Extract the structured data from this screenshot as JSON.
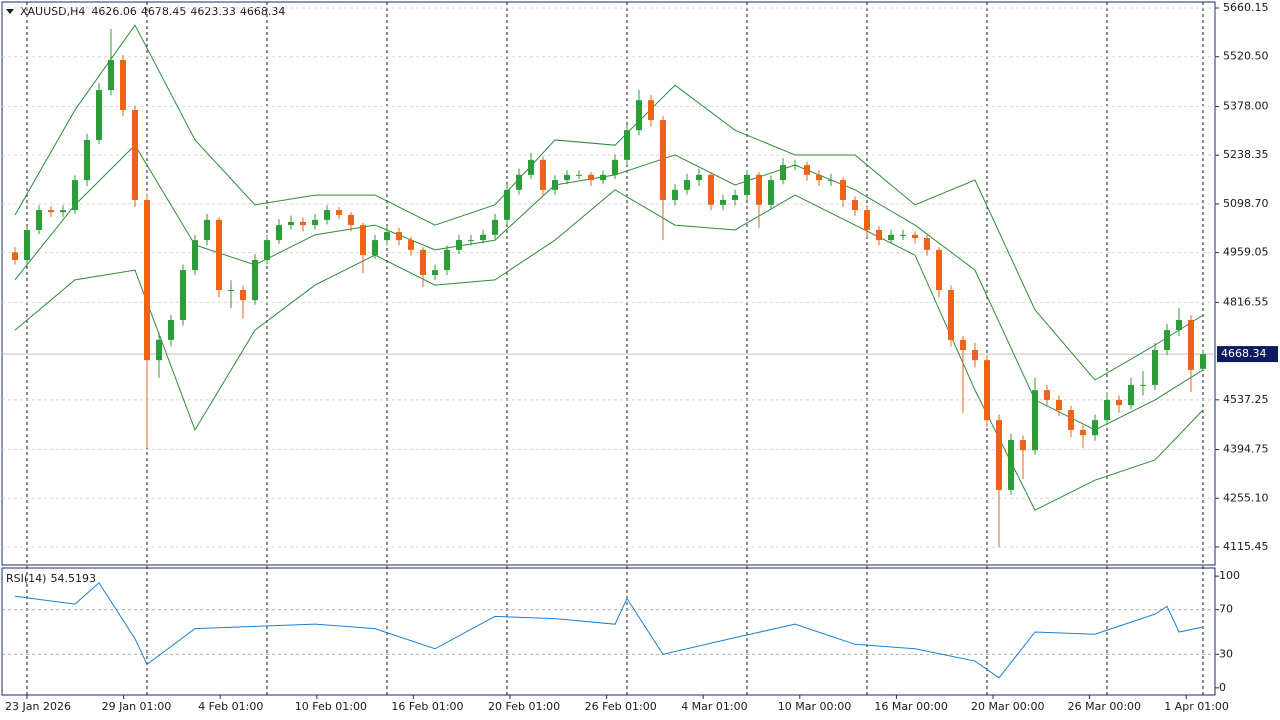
{
  "chart_data": {
    "type": "candlestick",
    "symbol": "XAUUSD,H4",
    "up_color": "#2e9c3a",
    "down_color": "#e8661a",
    "candles": [
      [
        4960,
        4975,
        4925,
        4938
      ],
      [
        4938,
        5035,
        4925,
        5024
      ],
      [
        5024,
        5095,
        5012,
        5081
      ],
      [
        5081,
        5092,
        5062,
        5075
      ],
      [
        5075,
        5095,
        5060,
        5081
      ],
      [
        5081,
        5180,
        5070,
        5167
      ],
      [
        5167,
        5300,
        5150,
        5282
      ],
      [
        5282,
        5445,
        5270,
        5425
      ],
      [
        5425,
        5600,
        5410,
        5511
      ],
      [
        5511,
        5525,
        5350,
        5368
      ],
      [
        5368,
        5380,
        5090,
        5110
      ],
      [
        5110,
        5125,
        4400,
        4651
      ],
      [
        4651,
        4730,
        4600,
        4709
      ],
      [
        4709,
        4780,
        4690,
        4766
      ],
      [
        4766,
        4925,
        4750,
        4909
      ],
      [
        4909,
        5010,
        4895,
        4995
      ],
      [
        4995,
        5070,
        4980,
        5053
      ],
      [
        5053,
        5060,
        4830,
        4852
      ],
      [
        4852,
        4880,
        4800,
        4852
      ],
      [
        4852,
        4865,
        4770,
        4823
      ],
      [
        4823,
        4955,
        4810,
        4938
      ],
      [
        4938,
        5010,
        4925,
        4995
      ],
      [
        4995,
        5055,
        4985,
        5038
      ],
      [
        5038,
        5065,
        5025,
        5047
      ],
      [
        5047,
        5060,
        5020,
        5038
      ],
      [
        5038,
        5070,
        5025,
        5053
      ],
      [
        5053,
        5095,
        5040,
        5081
      ],
      [
        5081,
        5090,
        5055,
        5067
      ],
      [
        5067,
        5075,
        5020,
        5038
      ],
      [
        5038,
        5045,
        4900,
        4952
      ],
      [
        4952,
        5010,
        4940,
        4995
      ],
      [
        4995,
        5035,
        4980,
        5018
      ],
      [
        5018,
        5030,
        4980,
        4995
      ],
      [
        4995,
        5005,
        4950,
        4967
      ],
      [
        4967,
        4975,
        4860,
        4895
      ],
      [
        4895,
        4925,
        4880,
        4909
      ],
      [
        4909,
        4980,
        4895,
        4967
      ],
      [
        4967,
        5010,
        4955,
        4995
      ],
      [
        4995,
        5010,
        4980,
        4995
      ],
      [
        4995,
        5025,
        4985,
        5010
      ],
      [
        5010,
        5070,
        4998,
        5053
      ],
      [
        5053,
        5155,
        5040,
        5139
      ],
      [
        5139,
        5200,
        5125,
        5182
      ],
      [
        5182,
        5245,
        5170,
        5225
      ],
      [
        5225,
        5235,
        5120,
        5139
      ],
      [
        5139,
        5180,
        5125,
        5167
      ],
      [
        5167,
        5195,
        5155,
        5182
      ],
      [
        5182,
        5195,
        5170,
        5182
      ],
      [
        5182,
        5190,
        5150,
        5167
      ],
      [
        5167,
        5195,
        5155,
        5182
      ],
      [
        5182,
        5240,
        5170,
        5225
      ],
      [
        5225,
        5325,
        5210,
        5310
      ],
      [
        5310,
        5425,
        5295,
        5396
      ],
      [
        5396,
        5410,
        5320,
        5339
      ],
      [
        5339,
        5350,
        4995,
        5110
      ],
      [
        5110,
        5155,
        5095,
        5139
      ],
      [
        5139,
        5185,
        5125,
        5167
      ],
      [
        5167,
        5200,
        5150,
        5182
      ],
      [
        5182,
        5190,
        5080,
        5096
      ],
      [
        5096,
        5125,
        5080,
        5110
      ],
      [
        5110,
        5140,
        5095,
        5124
      ],
      [
        5124,
        5195,
        5110,
        5182
      ],
      [
        5182,
        5190,
        5030,
        5096
      ],
      [
        5096,
        5180,
        5085,
        5167
      ],
      [
        5167,
        5230,
        5155,
        5210
      ],
      [
        5210,
        5225,
        5195,
        5210
      ],
      [
        5210,
        5220,
        5165,
        5182
      ],
      [
        5182,
        5195,
        5150,
        5167
      ],
      [
        5167,
        5185,
        5150,
        5167
      ],
      [
        5167,
        5175,
        5090,
        5110
      ],
      [
        5110,
        5120,
        5065,
        5081
      ],
      [
        5081,
        5090,
        5005,
        5024
      ],
      [
        5024,
        5035,
        4980,
        4995
      ],
      [
        4995,
        5025,
        4985,
        5010
      ],
      [
        5010,
        5025,
        4995,
        5010
      ],
      [
        5010,
        5020,
        4985,
        5001
      ],
      [
        5001,
        5010,
        4950,
        4967
      ],
      [
        4967,
        4975,
        4830,
        4852
      ],
      [
        4852,
        4865,
        4690,
        4709
      ],
      [
        4709,
        4720,
        4500,
        4680
      ],
      [
        4680,
        4700,
        4630,
        4651
      ],
      [
        4651,
        4665,
        4460,
        4479
      ],
      [
        4479,
        4495,
        4115,
        4279
      ],
      [
        4279,
        4440,
        4265,
        4422
      ],
      [
        4422,
        4435,
        4310,
        4393
      ],
      [
        4393,
        4600,
        4380,
        4565
      ],
      [
        4565,
        4580,
        4520,
        4537
      ],
      [
        4537,
        4550,
        4490,
        4508
      ],
      [
        4508,
        4520,
        4430,
        4451
      ],
      [
        4451,
        4465,
        4400,
        4436
      ],
      [
        4436,
        4495,
        4420,
        4479
      ],
      [
        4479,
        4560,
        4465,
        4537
      ],
      [
        4537,
        4550,
        4500,
        4522
      ],
      [
        4522,
        4600,
        4510,
        4580
      ],
      [
        4580,
        4620,
        4550,
        4580
      ],
      [
        4580,
        4700,
        4565,
        4680
      ],
      [
        4680,
        4755,
        4665,
        4737
      ],
      [
        4737,
        4800,
        4720,
        4766
      ],
      [
        4766,
        4780,
        4560,
        4623
      ],
      [
        4626.06,
        4678.45,
        4623.33,
        4668.34
      ]
    ],
    "bands": {
      "color": "#2e8b3a",
      "x": [
        0,
        5,
        10,
        15,
        20,
        25,
        30,
        35,
        40,
        45,
        50,
        55,
        60,
        65,
        70,
        75,
        80,
        85,
        90,
        95,
        99
      ],
      "upper": [
        5067,
        5368,
        5611,
        5282,
        5096,
        5124,
        5124,
        5038,
        5096,
        5282,
        5267,
        5439,
        5310,
        5239,
        5239,
        5096,
        5167,
        4795,
        4594,
        4694,
        4780
      ],
      "middle": [
        4881,
        5096,
        5267,
        4981,
        4924,
        5010,
        5038,
        4967,
        4995,
        5153,
        5182,
        5239,
        5153,
        5210,
        5139,
        5038,
        4909,
        4537,
        4451,
        4537,
        4623
      ],
      "lower": [
        4737,
        4881,
        4909,
        4451,
        4737,
        4866,
        4952,
        4866,
        4881,
        4995,
        5139,
        5038,
        5024,
        5124,
        5038,
        4952,
        4565,
        4221,
        4307,
        4365,
        4508
      ]
    },
    "ylim": [
      4063.86,
      5677.35
    ],
    "yticks": [
      5660.15,
      {
        "value": 5520.5,
        "label": "5520.50"
      },
      {
        "value": 5378,
        "label": "5378.00"
      },
      5238.35,
      {
        "value": 5098.7,
        "label": "5098.70"
      },
      4959.05,
      4816.55,
      4537.25,
      4394.75,
      {
        "value": 4255.1,
        "label": "4255.10"
      },
      4115.45
    ],
    "rsi": {
      "name": "RSI(14)",
      "color": "#1e7fd0",
      "x": [
        0,
        5,
        7,
        10,
        11,
        15,
        20,
        25,
        30,
        35,
        40,
        45,
        50,
        51,
        54,
        60,
        65,
        70,
        75,
        80,
        82,
        85,
        90,
        95,
        96,
        97,
        99
      ],
      "values": [
        82,
        75,
        94,
        44,
        21,
        53,
        55,
        57,
        53,
        35,
        64,
        62,
        57,
        80,
        30,
        45,
        57,
        39,
        35,
        24,
        9,
        50,
        48,
        66,
        73,
        50,
        54.5193
      ],
      "ylim": [
        -6.4,
        107.3
      ],
      "yticks": [
        100,
        70,
        30,
        0
      ]
    },
    "time_labels": [
      "23 Jan 2026",
      "29 Jan 01:00",
      "4 Feb 01:00",
      "10 Feb 01:00",
      "16 Feb 01:00",
      "20 Feb 01:00",
      "26 Feb 01:00",
      "4 Mar 01:00",
      "10 Mar 00:00",
      "16 Mar 00:00",
      "20 Mar 00:00",
      "26 Mar 00:00",
      "1 Apr 01:00"
    ]
  }
}
